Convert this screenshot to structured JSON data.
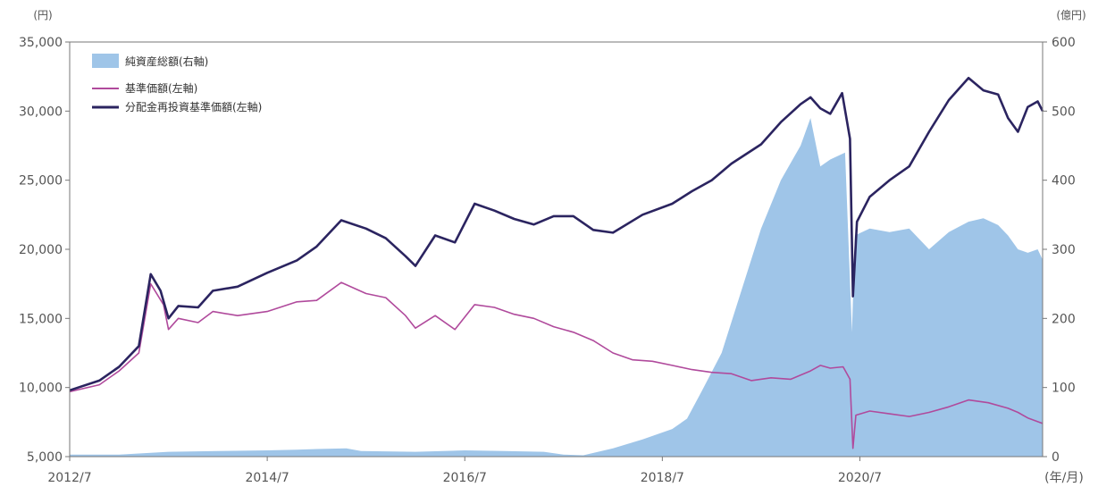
{
  "chart_data": {
    "type": "line",
    "left_unit": "(円)",
    "right_unit": "(億円)",
    "x_unit": "(年/月)",
    "x_ticks": [
      "2012/7",
      "2014/7",
      "2016/7",
      "2018/7",
      "2020/7"
    ],
    "x_tick_values": [
      2012.5,
      2014.5,
      2016.5,
      2018.5,
      2020.5
    ],
    "xlim": [
      2012.5,
      2022.35
    ],
    "y_left": {
      "lim": [
        5000,
        35000
      ],
      "ticks": [
        5000,
        10000,
        15000,
        20000,
        25000,
        30000,
        35000
      ],
      "tick_labels": [
        "5,000",
        "10,000",
        "15,000",
        "20,000",
        "25,000",
        "30,000",
        "35,000"
      ]
    },
    "y_right": {
      "lim": [
        0,
        600
      ],
      "ticks": [
        0,
        100,
        200,
        300,
        400,
        500,
        600
      ],
      "tick_labels": [
        "0",
        "100",
        "200",
        "300",
        "400",
        "500",
        "600"
      ]
    },
    "colors": {
      "area": "#9fc5e8",
      "nav": "#b04a9c",
      "reinvested": "#2b2460",
      "axis": "#777777"
    },
    "series": [
      {
        "name": "純資産総額(右軸)",
        "kind": "area",
        "axis": "right",
        "points": [
          [
            2012.5,
            3
          ],
          [
            2013.0,
            3
          ],
          [
            2013.5,
            7
          ],
          [
            2014.0,
            8
          ],
          [
            2014.5,
            9
          ],
          [
            2014.8,
            10
          ],
          [
            2015.0,
            11
          ],
          [
            2015.3,
            12
          ],
          [
            2015.45,
            8
          ],
          [
            2016.0,
            7
          ],
          [
            2016.5,
            9
          ],
          [
            2016.9,
            8
          ],
          [
            2017.3,
            7
          ],
          [
            2017.5,
            3
          ],
          [
            2017.7,
            2
          ],
          [
            2018.0,
            12
          ],
          [
            2018.3,
            25
          ],
          [
            2018.6,
            40
          ],
          [
            2018.75,
            55
          ],
          [
            2018.9,
            95
          ],
          [
            2019.1,
            150
          ],
          [
            2019.3,
            240
          ],
          [
            2019.5,
            330
          ],
          [
            2019.7,
            400
          ],
          [
            2019.9,
            450
          ],
          [
            2020.0,
            490
          ],
          [
            2020.1,
            420
          ],
          [
            2020.2,
            430
          ],
          [
            2020.35,
            440
          ],
          [
            2020.42,
            180
          ],
          [
            2020.45,
            320
          ],
          [
            2020.6,
            330
          ],
          [
            2020.8,
            325
          ],
          [
            2021.0,
            330
          ],
          [
            2021.2,
            300
          ],
          [
            2021.4,
            325
          ],
          [
            2021.6,
            340
          ],
          [
            2021.75,
            345
          ],
          [
            2021.9,
            335
          ],
          [
            2022.0,
            320
          ],
          [
            2022.1,
            300
          ],
          [
            2022.2,
            295
          ],
          [
            2022.3,
            300
          ],
          [
            2022.35,
            285
          ]
        ]
      },
      {
        "name": "基準価額(左軸)",
        "kind": "line",
        "axis": "left",
        "points": [
          [
            2012.5,
            9700
          ],
          [
            2012.8,
            10200
          ],
          [
            2013.0,
            11200
          ],
          [
            2013.2,
            12500
          ],
          [
            2013.32,
            17500
          ],
          [
            2013.45,
            16000
          ],
          [
            2013.5,
            14200
          ],
          [
            2013.6,
            15000
          ],
          [
            2013.8,
            14700
          ],
          [
            2013.95,
            15500
          ],
          [
            2014.2,
            15200
          ],
          [
            2014.5,
            15500
          ],
          [
            2014.8,
            16200
          ],
          [
            2015.0,
            16300
          ],
          [
            2015.25,
            17600
          ],
          [
            2015.5,
            16800
          ],
          [
            2015.7,
            16500
          ],
          [
            2015.9,
            15200
          ],
          [
            2016.0,
            14300
          ],
          [
            2016.2,
            15200
          ],
          [
            2016.4,
            14200
          ],
          [
            2016.6,
            16000
          ],
          [
            2016.8,
            15800
          ],
          [
            2017.0,
            15300
          ],
          [
            2017.2,
            15000
          ],
          [
            2017.4,
            14400
          ],
          [
            2017.6,
            14000
          ],
          [
            2017.8,
            13400
          ],
          [
            2018.0,
            12500
          ],
          [
            2018.2,
            12000
          ],
          [
            2018.4,
            11900
          ],
          [
            2018.6,
            11600
          ],
          [
            2018.8,
            11300
          ],
          [
            2019.0,
            11100
          ],
          [
            2019.2,
            11000
          ],
          [
            2019.4,
            10500
          ],
          [
            2019.6,
            10700
          ],
          [
            2019.8,
            10600
          ],
          [
            2020.0,
            11200
          ],
          [
            2020.1,
            11600
          ],
          [
            2020.2,
            11400
          ],
          [
            2020.33,
            11500
          ],
          [
            2020.4,
            10600
          ],
          [
            2020.43,
            5600
          ],
          [
            2020.46,
            8000
          ],
          [
            2020.6,
            8300
          ],
          [
            2020.8,
            8100
          ],
          [
            2021.0,
            7900
          ],
          [
            2021.2,
            8200
          ],
          [
            2021.4,
            8600
          ],
          [
            2021.6,
            9100
          ],
          [
            2021.8,
            8900
          ],
          [
            2022.0,
            8500
          ],
          [
            2022.1,
            8200
          ],
          [
            2022.2,
            7800
          ],
          [
            2022.35,
            7400
          ]
        ]
      },
      {
        "name": "分配金再投資基準価額(左軸)",
        "kind": "line",
        "axis": "left",
        "points": [
          [
            2012.5,
            9800
          ],
          [
            2012.8,
            10500
          ],
          [
            2013.0,
            11500
          ],
          [
            2013.2,
            13000
          ],
          [
            2013.32,
            18200
          ],
          [
            2013.42,
            17000
          ],
          [
            2013.5,
            15000
          ],
          [
            2013.6,
            15900
          ],
          [
            2013.8,
            15800
          ],
          [
            2013.95,
            17000
          ],
          [
            2014.2,
            17300
          ],
          [
            2014.5,
            18300
          ],
          [
            2014.8,
            19200
          ],
          [
            2015.0,
            20200
          ],
          [
            2015.25,
            22100
          ],
          [
            2015.5,
            21500
          ],
          [
            2015.7,
            20800
          ],
          [
            2015.9,
            19500
          ],
          [
            2016.0,
            18800
          ],
          [
            2016.2,
            21000
          ],
          [
            2016.4,
            20500
          ],
          [
            2016.6,
            23300
          ],
          [
            2016.8,
            22800
          ],
          [
            2017.0,
            22200
          ],
          [
            2017.2,
            21800
          ],
          [
            2017.4,
            22400
          ],
          [
            2017.6,
            22400
          ],
          [
            2017.8,
            21400
          ],
          [
            2018.0,
            21200
          ],
          [
            2018.3,
            22500
          ],
          [
            2018.6,
            23300
          ],
          [
            2018.8,
            24200
          ],
          [
            2019.0,
            25000
          ],
          [
            2019.2,
            26200
          ],
          [
            2019.5,
            27600
          ],
          [
            2019.7,
            29200
          ],
          [
            2019.9,
            30500
          ],
          [
            2020.0,
            31000
          ],
          [
            2020.1,
            30200
          ],
          [
            2020.2,
            29800
          ],
          [
            2020.32,
            31300
          ],
          [
            2020.4,
            28000
          ],
          [
            2020.43,
            16600
          ],
          [
            2020.47,
            22000
          ],
          [
            2020.6,
            23800
          ],
          [
            2020.8,
            25000
          ],
          [
            2021.0,
            26000
          ],
          [
            2021.2,
            28500
          ],
          [
            2021.4,
            30800
          ],
          [
            2021.6,
            32400
          ],
          [
            2021.75,
            31500
          ],
          [
            2021.9,
            31200
          ],
          [
            2022.0,
            29500
          ],
          [
            2022.1,
            28500
          ],
          [
            2022.2,
            30300
          ],
          [
            2022.3,
            30700
          ],
          [
            2022.35,
            30000
          ]
        ]
      }
    ],
    "legend_placement": "top-left"
  }
}
